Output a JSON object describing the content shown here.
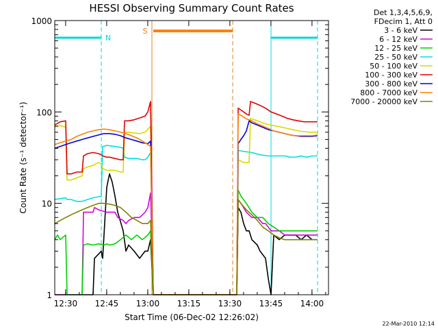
{
  "chart_data": {
    "type": "line",
    "title": "HESSI Observing Summary Count Rates",
    "xlabel": "Start Time (06-Dec-02 12:26:02)",
    "ylabel": "Count Rate (s⁻¹ detector⁻¹)",
    "x_unit": "minutes since 12:26:02",
    "xlim": [
      0,
      100
    ],
    "ylim": [
      1,
      1000
    ],
    "yscale": "log",
    "x_ticks": [
      {
        "x": 3.97,
        "label": "12:30"
      },
      {
        "x": 18.97,
        "label": "12:45"
      },
      {
        "x": 33.97,
        "label": "13:00"
      },
      {
        "x": 48.97,
        "label": "13:15"
      },
      {
        "x": 63.97,
        "label": "13:30"
      },
      {
        "x": 78.97,
        "label": "13:45"
      },
      {
        "x": 93.97,
        "label": "14:00"
      }
    ],
    "y_ticks": [
      {
        "y": 1,
        "label": "1"
      },
      {
        "y": 10,
        "label": "10"
      },
      {
        "y": 100,
        "label": "100"
      },
      {
        "y": 1000,
        "label": "1000"
      }
    ],
    "legend": {
      "header": [
        "Det 1,3,4,5,6,9,",
        "FDecim 1, Att 0"
      ],
      "placement": "right"
    },
    "series": [
      {
        "name": "3 - 6 keV",
        "color": "#000000",
        "x": [
          0,
          4,
          4.5,
          10,
          11,
          14,
          14.5,
          17,
          17.5,
          19,
          20,
          21,
          22,
          23,
          25,
          26,
          27,
          29,
          31,
          33,
          34,
          35,
          36,
          66.5,
          67,
          68,
          69,
          70,
          71,
          72,
          74,
          75,
          77,
          78,
          79,
          80,
          82,
          84,
          86,
          88,
          90,
          92,
          94,
          96
        ],
        "y": [
          1,
          1,
          1,
          1,
          1,
          1,
          2.5,
          3,
          2.5,
          15,
          21,
          17,
          12,
          8,
          5,
          3,
          3.5,
          3,
          2.5,
          3,
          3,
          4,
          1,
          1,
          9,
          8,
          6,
          5,
          5,
          4,
          3.5,
          3,
          2.5,
          1.5,
          1,
          4.5,
          4,
          4.5,
          4.5,
          4.5,
          4,
          4.5,
          4,
          4
        ]
      },
      {
        "name": "6 - 12 keV",
        "color": "#d800d8",
        "x": [
          0,
          4,
          4.5,
          10,
          10.5,
          14,
          14.5,
          16,
          19,
          20,
          22,
          23,
          25,
          26,
          27,
          29,
          31,
          33,
          34,
          35,
          36,
          66.5,
          67,
          68,
          69,
          70,
          72,
          74,
          76,
          77,
          78,
          79,
          80,
          82,
          84,
          86,
          88,
          90,
          92,
          94,
          96
        ],
        "y": [
          1,
          1,
          1,
          1,
          8,
          8,
          9,
          8.5,
          8,
          8,
          8,
          7,
          6.5,
          6,
          6.5,
          7,
          7,
          8,
          9,
          13,
          1,
          1,
          11,
          10,
          9,
          8,
          7,
          7,
          6,
          6,
          5.5,
          5,
          5,
          5,
          4.5,
          4.5,
          4.5,
          4.5,
          4.5,
          4.5,
          4.5
        ]
      },
      {
        "name": "12 - 25 keV",
        "color": "#00d000",
        "x": [
          0,
          1,
          2,
          4,
          4.5,
          6,
          8,
          10,
          10.5,
          12,
          14,
          16,
          18,
          19,
          20,
          22,
          24,
          26,
          28,
          30,
          32,
          34,
          35,
          36,
          66.5,
          67,
          68,
          70,
          72,
          74,
          76,
          78,
          80,
          82,
          84,
          86,
          88,
          90,
          92,
          94,
          96
        ],
        "y": [
          4,
          4.5,
          4,
          4.5,
          1,
          1,
          1,
          1,
          3.5,
          3.6,
          3.5,
          3.6,
          3.5,
          3.6,
          3.5,
          3.6,
          4,
          4.5,
          4,
          4.5,
          4,
          4.5,
          5,
          1,
          1,
          14,
          12,
          10,
          8,
          7,
          7,
          6,
          5.5,
          5,
          5,
          5,
          5,
          5,
          5,
          5,
          5
        ]
      },
      {
        "name": "25 - 50 keV",
        "color": "#00e0e0",
        "x": [
          0,
          4,
          4.5,
          6,
          8,
          10,
          12,
          14,
          16,
          17,
          17.5,
          19,
          22,
          24,
          25,
          25.5,
          27,
          30,
          32,
          33,
          34,
          35,
          36,
          66.5,
          67,
          69,
          72,
          75,
          78,
          80,
          82,
          84,
          86,
          88,
          90,
          92,
          94,
          96
        ],
        "y": [
          11,
          11.5,
          11,
          11,
          10.5,
          10.5,
          11,
          11.5,
          11.8,
          12,
          42,
          43,
          42,
          41,
          40,
          32,
          31,
          31,
          30,
          30,
          32,
          36,
          1,
          1,
          38,
          37,
          36,
          34,
          33,
          33,
          33,
          33,
          32,
          32,
          33,
          32,
          33,
          33
        ]
      },
      {
        "name": "50 - 100 keV",
        "color": "#d8d800",
        "x": [
          0,
          1,
          2,
          4,
          4.5,
          6,
          8,
          10,
          10.5,
          12,
          14,
          16,
          17,
          17.5,
          19,
          20,
          22,
          24,
          25,
          25.5,
          27,
          29,
          31,
          33,
          34,
          35,
          36,
          66.5,
          67,
          68,
          69,
          70,
          71,
          71.5,
          73,
          75,
          77,
          79,
          81,
          83,
          85,
          87,
          89,
          91,
          93,
          95,
          96
        ],
        "y": [
          68,
          70,
          71,
          68,
          18,
          18,
          19,
          20,
          24,
          25,
          26,
          28,
          27,
          24,
          23,
          23,
          23,
          22,
          22,
          60,
          60,
          59,
          58,
          60,
          65,
          70,
          1,
          1,
          30,
          29,
          28,
          28,
          28,
          85,
          82,
          78,
          74,
          72,
          70,
          68,
          66,
          64,
          62,
          61,
          60,
          60,
          60
        ]
      },
      {
        "name": "100 - 300 keV",
        "color": "#e00000",
        "x": [
          0,
          1,
          2,
          4,
          4.5,
          6,
          8,
          10,
          10.5,
          12,
          14,
          16,
          17,
          17.5,
          19,
          20,
          22,
          24,
          25,
          25.5,
          27,
          29,
          31,
          33,
          34,
          35,
          36,
          66.5,
          67,
          68,
          69,
          70,
          71,
          71.5,
          73,
          75,
          77,
          79,
          81,
          83,
          85,
          87,
          89,
          91,
          93,
          95,
          96
        ],
        "y": [
          72,
          75,
          78,
          80,
          21,
          21,
          22,
          22,
          33,
          35,
          36,
          35,
          34,
          33,
          32,
          32,
          31,
          30,
          30,
          80,
          80,
          82,
          86,
          90,
          100,
          130,
          1,
          1,
          110,
          105,
          100,
          95,
          92,
          130,
          125,
          118,
          110,
          100,
          95,
          90,
          85,
          82,
          80,
          78,
          78,
          78,
          78
        ]
      },
      {
        "name": "300 - 800 keV",
        "color": "#0000e0",
        "x": [
          0,
          2,
          4,
          6,
          8,
          10,
          12,
          14,
          16,
          18,
          20,
          22,
          24,
          26,
          28,
          30,
          32,
          34,
          35,
          36,
          66.5,
          67,
          68,
          69,
          70,
          71,
          72,
          74,
          76,
          78,
          80,
          82,
          84,
          86,
          88,
          90,
          92,
          94,
          96
        ],
        "y": [
          40,
          42,
          44,
          46,
          48,
          50,
          52,
          54,
          56,
          58,
          58,
          57,
          55,
          52,
          50,
          48,
          46,
          45,
          48,
          1,
          1,
          45,
          50,
          55,
          62,
          80,
          76,
          72,
          68,
          64,
          62,
          60,
          58,
          56,
          55,
          54,
          54,
          54,
          55
        ]
      },
      {
        "name": "800 - 7000 keV",
        "color": "#ff7f00",
        "x": [
          0,
          2,
          4,
          6,
          8,
          10,
          12,
          14,
          16,
          18,
          20,
          22,
          24,
          26,
          28,
          30,
          32,
          34,
          35,
          36,
          66.5,
          67,
          68,
          69,
          70,
          72,
          74,
          76,
          78,
          80,
          82,
          84,
          86,
          88,
          90,
          92,
          94,
          96
        ],
        "y": [
          44,
          46,
          48,
          50,
          54,
          57,
          60,
          62,
          64,
          65,
          64,
          62,
          60,
          58,
          55,
          52,
          48,
          44,
          42,
          1,
          1,
          95,
          92,
          88,
          84,
          80,
          74,
          70,
          66,
          62,
          60,
          58,
          56,
          55,
          55,
          55,
          55,
          56
        ]
      },
      {
        "name": "7000 - 20000 keV",
        "color": "#808000",
        "x": [
          0,
          2,
          4,
          6,
          8,
          10,
          12,
          14,
          16,
          18,
          20,
          22,
          24,
          26,
          28,
          30,
          32,
          34,
          35,
          36,
          66.5,
          67,
          68,
          70,
          72,
          74,
          76,
          78,
          80,
          82,
          84,
          86,
          88,
          90,
          92,
          94,
          96
        ],
        "y": [
          6,
          6.5,
          7,
          7.5,
          8,
          8.5,
          9,
          9.5,
          10,
          10,
          9.8,
          9.5,
          9,
          8,
          7,
          6.5,
          6,
          6,
          6.5,
          1,
          1,
          11,
          10,
          8.5,
          7.5,
          6.5,
          5.5,
          5,
          4.5,
          4.2,
          4,
          4,
          4,
          4,
          4,
          4,
          4
        ]
      }
    ],
    "annotations": [
      {
        "text": "N",
        "color": "#00d8d8"
      },
      {
        "text": "S",
        "color": "#e08020"
      }
    ],
    "markers": {
      "night_bars": {
        "color": "#00d8d8",
        "y": 650,
        "segments": [
          [
            0,
            17
          ],
          [
            79,
            96
          ]
        ]
      },
      "saa_bar": {
        "color": "#ff7f00",
        "y": 770,
        "segment": [
          36,
          65
        ]
      },
      "night_lines": {
        "color": "#00d8d8",
        "solid": [
          0,
          79
        ],
        "dashed": [
          17,
          96
        ]
      },
      "saa_lines": {
        "color": "#e08020",
        "solid": [
          35.5
        ],
        "dashed": [
          65
        ]
      }
    }
  },
  "timestamp": "22-Mar-2010 12:14"
}
